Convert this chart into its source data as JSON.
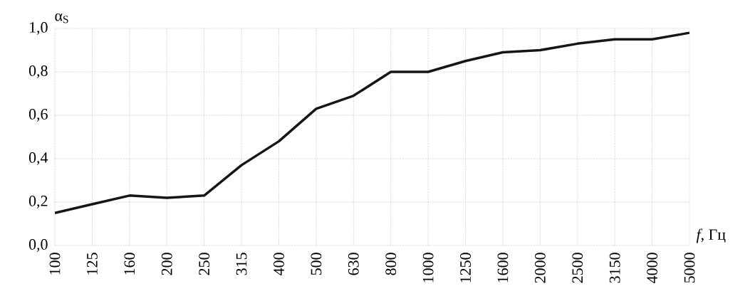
{
  "chart_data": {
    "type": "line",
    "xlabel": "*f*, Гц",
    "ylabel": "α$_{S}$",
    "categories": [
      "100",
      "125",
      "160",
      "200",
      "250",
      "315",
      "400",
      "500",
      "630",
      "800",
      "1000",
      "1250",
      "1600",
      "2000",
      "2500",
      "3150",
      "4000",
      "5000"
    ],
    "series": [
      {
        "color": "#1a1414",
        "values": [
          0.15,
          0.19,
          0.23,
          0.22,
          0.23,
          0.37,
          0.48,
          0.63,
          0.69,
          0.8,
          0.8,
          0.85,
          0.89,
          0.9,
          0.93,
          0.95,
          0.95,
          0.98
        ]
      }
    ],
    "ylim": [
      0,
      1
    ],
    "yticks": [
      {
        "value": 0,
        "label": "0,0"
      },
      {
        "value": 0.2,
        "label": "0,2"
      },
      {
        "value": 0.4,
        "label": "0,4"
      },
      {
        "value": 0.6,
        "label": "0,6"
      },
      {
        "value": 0.8,
        "label": "0,8"
      },
      {
        "value": 1,
        "label": "1,0"
      }
    ],
    "grid": true,
    "marker": "none",
    "line_style": "solid"
  }
}
